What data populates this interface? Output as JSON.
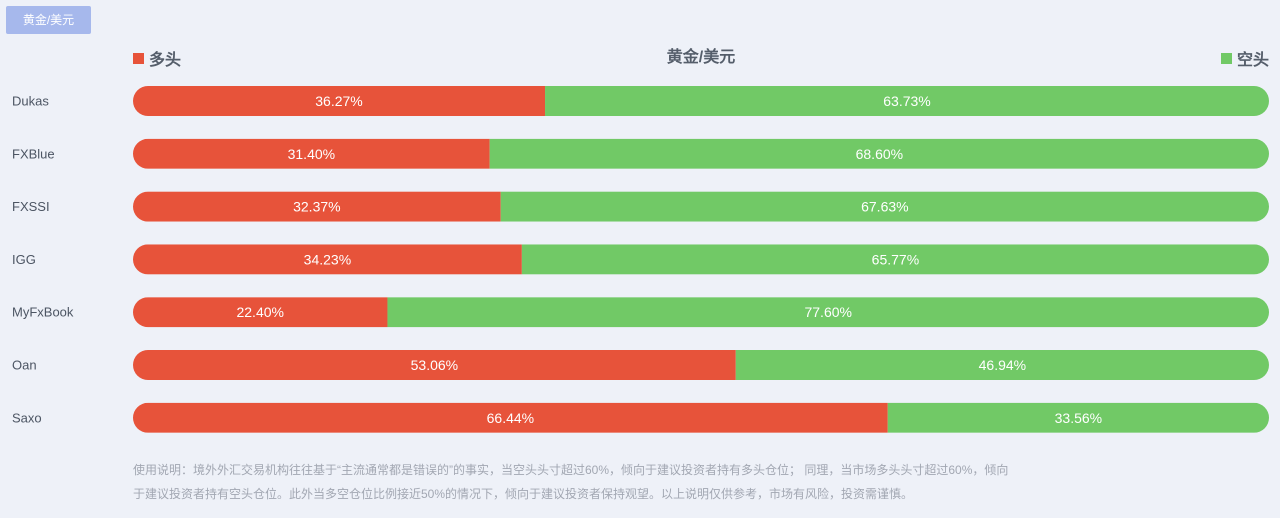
{
  "tab": {
    "label": "黄金/美元"
  },
  "legend": {
    "long_label": "多头",
    "short_label": "空头"
  },
  "colors": {
    "long": "#e7533a",
    "short": "#71c966"
  },
  "chart_data": {
    "type": "bar",
    "stacked": true,
    "orientation": "horizontal",
    "title": "黄金/美元",
    "categories": [
      "Dukas",
      "FXBlue",
      "FXSSI",
      "IGG",
      "MyFxBook",
      "Oan",
      "Saxo"
    ],
    "series": [
      {
        "name": "多头",
        "values": [
          36.27,
          31.4,
          32.37,
          34.23,
          22.4,
          53.06,
          66.44
        ],
        "labels": [
          "36.27%",
          "31.40%",
          "32.37%",
          "34.23%",
          "22.40%",
          "53.06%",
          "66.44%"
        ]
      },
      {
        "name": "空头",
        "values": [
          63.73,
          68.6,
          67.63,
          65.77,
          77.6,
          46.94,
          33.56
        ],
        "labels": [
          "63.73%",
          "68.60%",
          "67.63%",
          "65.77%",
          "77.60%",
          "46.94%",
          "33.56%"
        ]
      }
    ],
    "xlim": [
      0,
      100
    ],
    "grid": false,
    "legend_position": "top"
  },
  "note": {
    "line1": "使用说明：境外外汇交易机构往往基于“主流通常都是错误的”的事实，当空头头寸超过60%，倾向于建议投资者持有多头仓位； 同理，当市场多头头寸超过60%，倾向",
    "line2": "于建议投资者持有空头仓位。此外当多空仓位比例接近50%的情况下，倾向于建议投资者保持观望。以上说明仅供参考，市场有风险，投资需谨慎。"
  }
}
